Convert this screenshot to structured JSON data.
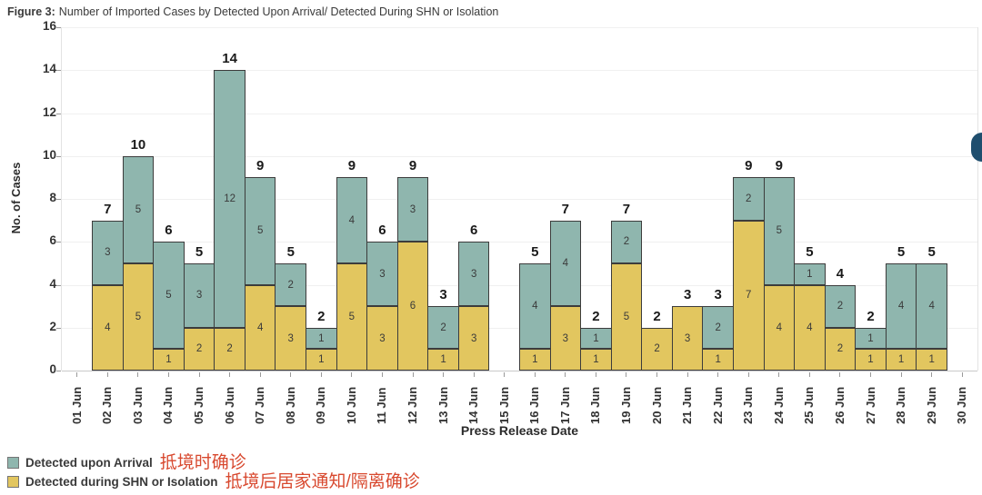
{
  "figure_title": {
    "prefix": "Figure 3:",
    "text": "Number of Imported Cases by Detected Upon Arrival/ Detected During SHN or Isolation"
  },
  "chart_data": {
    "type": "bar",
    "stacked": true,
    "title": "Number of Imported Cases by Detected Upon Arrival/ Detected During SHN or Isolation",
    "xlabel": "Press Release Date",
    "ylabel": "No. of Cases",
    "ylim": [
      0,
      16
    ],
    "yticks": [
      0,
      2,
      4,
      6,
      8,
      10,
      12,
      14,
      16
    ],
    "grid": true,
    "legend_position": "bottom-left",
    "categories": [
      "01 Jun",
      "02 Jun",
      "03 Jun",
      "04 Jun",
      "05 Jun",
      "06 Jun",
      "07 Jun",
      "08 Jun",
      "09 Jun",
      "10 Jun",
      "11 Jun",
      "12 Jun",
      "13 Jun",
      "14 Jun",
      "15 Jun",
      "16 Jun",
      "17 Jun",
      "18 Jun",
      "19 Jun",
      "20 Jun",
      "21 Jun",
      "22 Jun",
      "23 Jun",
      "24 Jun",
      "25 Jun",
      "26 Jun",
      "27 Jun",
      "28 Jun",
      "29 Jun",
      "30 Jun"
    ],
    "series": [
      {
        "name": "Detected during SHN or Isolation",
        "name_zh": "抵境后居家通知/隔离确诊",
        "color": "#E2C65F",
        "stack_order": "bottom",
        "values": [
          0,
          4,
          5,
          1,
          2,
          2,
          4,
          3,
          1,
          5,
          3,
          6,
          1,
          3,
          0,
          1,
          3,
          1,
          5,
          2,
          3,
          1,
          7,
          4,
          4,
          2,
          1,
          1,
          1,
          0
        ]
      },
      {
        "name": "Detected upon Arrival",
        "name_zh": "抵境时确诊",
        "color": "#8FB6AE",
        "stack_order": "top",
        "values": [
          0,
          3,
          5,
          5,
          3,
          12,
          5,
          2,
          1,
          4,
          3,
          3,
          2,
          3,
          0,
          4,
          4,
          1,
          2,
          0,
          0,
          2,
          2,
          5,
          1,
          2,
          1,
          4,
          4,
          0
        ]
      }
    ],
    "totals": [
      null,
      7,
      10,
      6,
      5,
      14,
      9,
      5,
      2,
      9,
      6,
      9,
      3,
      6,
      null,
      5,
      7,
      2,
      7,
      2,
      3,
      3,
      9,
      9,
      5,
      4,
      2,
      5,
      5,
      null
    ]
  },
  "legend": {
    "items": [
      {
        "label": "Detected upon Arrival",
        "label_zh": "抵境时确诊",
        "color": "#8FB6AE"
      },
      {
        "label": "Detected during SHN or Isolation",
        "label_zh": "抵境后居家通知/隔离确诊",
        "color": "#E2C65F"
      }
    ]
  },
  "colors": {
    "arrival_teal": "#8FB6AE",
    "shn_yellow": "#E2C65F",
    "bar_stroke": "#3C3C3C",
    "annotation_red": "#D8492F",
    "nav_button_navy": "#1F4E6E",
    "gridline": "#F0F0F0"
  }
}
